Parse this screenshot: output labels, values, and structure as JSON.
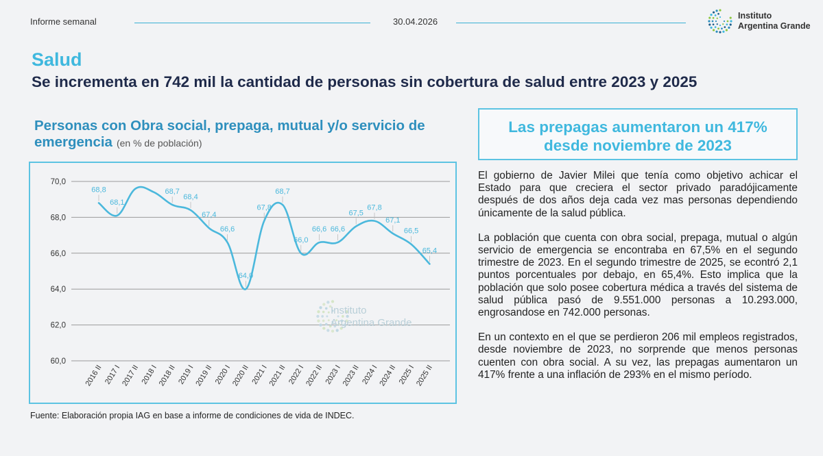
{
  "header": {
    "left_label": "Informe semanal",
    "date": "30.04.2026",
    "logo_line1": "Instituto",
    "logo_line2": "Argentina Grande"
  },
  "section_title": "Salud",
  "headline": "Se incrementa en 742 mil la cantidad de personas sin cobertura de salud entre 2023 y 2025",
  "chart_heading": {
    "title": "Personas con Obra social, prepaga, mutual y/o servicio de emergencia",
    "subtitle": "(en % de población)"
  },
  "source": "Fuente: Elaboración propia IAG en base a informe de condiciones de vida de INDEC.",
  "watermark": {
    "line1": "Instituto",
    "line2": "Argentina Grande"
  },
  "callout": {
    "line1": "Las prepagas aumentaron un 417%",
    "line2": "desde noviembre de 2023"
  },
  "body": {
    "p1": "El gobierno de Javier Milei que tenía como objetivo achicar el Estado para que creciera el sector privado paradójicamente después de dos años deja cada vez mas personas dependiendo únicamente de la salud pública.",
    "p2": "La población que cuenta con obra social, prepaga, mutual o algún servicio de emergencia se encontraba en 67,5% en el segundo trimestre de 2023. En el segundo trimestre de 2025, se econtró 2,1 puntos porcentuales por debajo, en 65,4%. Esto implica que la población que solo posee cobertura médica a través del sistema de salud pública pasó de 9.551.000 personas a 10.293.000, engrosandose en 742.000 personas.",
    "p3": "En un contexto en el que se perdieron 206 mil empleos registrados, desde noviembre de 2023, no sorprende que menos personas cuenten con obra social. A su vez, las prepagas aumentaron un 417% frente a una inflación de 293% en el mismo período."
  },
  "colors": {
    "accent": "#3fb8de",
    "headline": "#1f2a4a",
    "chart_title": "#2e8fbd",
    "line": "#4bb8dc",
    "label": "#4bb8dc",
    "grid": "#9a9a9a"
  },
  "chart_data": {
    "type": "line",
    "categories": [
      "2016 II",
      "2017 I",
      "2017 II",
      "2018 I",
      "2018 II",
      "2019 I",
      "2019 II",
      "2020 I",
      "2020 II",
      "2021 I",
      "2021 II",
      "2022 I",
      "2022 II",
      "2023 I",
      "2023 II",
      "2024 I",
      "2024 II",
      "2025 I",
      "2025 II"
    ],
    "series": [
      {
        "values": [
          68.8,
          68.1,
          null,
          null,
          68.7,
          68.4,
          67.4,
          66.6,
          64.0,
          67.8,
          68.7,
          66.0,
          66.6,
          66.6,
          67.5,
          67.8,
          67.1,
          66.5,
          65.4
        ],
        "labels": [
          "68,8",
          "68,1",
          "",
          "",
          "68,7",
          "68,4",
          "67,4",
          "66,6",
          "64,0",
          "67,8",
          "68,7",
          "66,0",
          "66,6",
          "66,6",
          "67,5",
          "67,8",
          "67,1",
          "66,5",
          "65,4"
        ]
      }
    ],
    "ylim": [
      60,
      70
    ],
    "yticks": [
      60,
      62,
      64,
      66,
      68,
      70
    ],
    "ytick_labels": [
      "60,0",
      "62,0",
      "64,0",
      "66,0",
      "68,0",
      "70,0"
    ],
    "grid": true,
    "smooth": true
  }
}
